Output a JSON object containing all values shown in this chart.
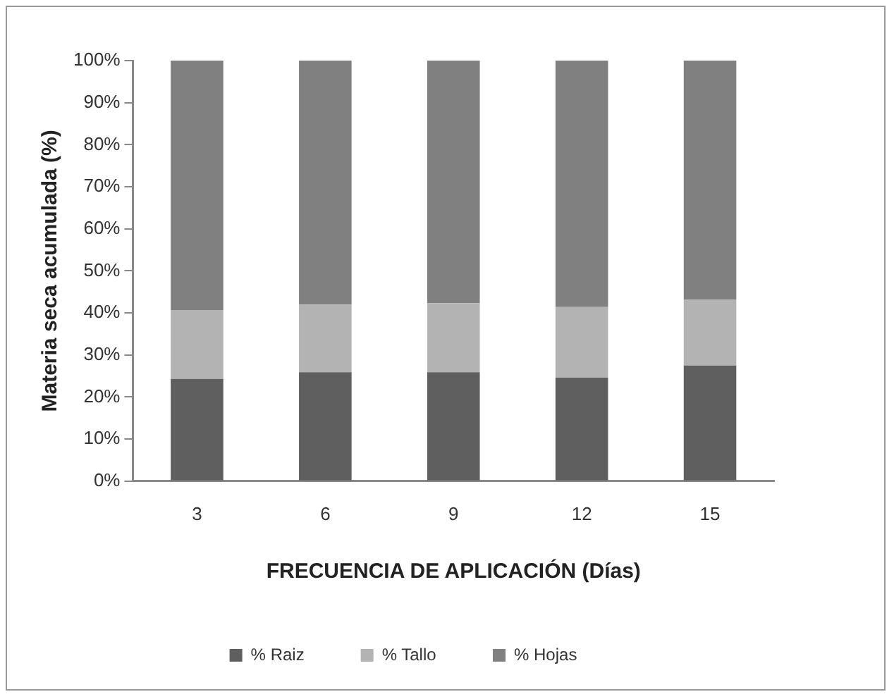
{
  "chart_data": {
    "type": "bar",
    "stacked": true,
    "xlabel": "FRECUENCIA DE APLICACIÓN (Días)",
    "ylabel": "Materia seca acumulada (%)",
    "categories": [
      "3",
      "6",
      "9",
      "12",
      "15"
    ],
    "series": [
      {
        "name": "% Raiz",
        "color": "#5f5f5f",
        "values": [
          24.3,
          25.9,
          25.9,
          24.6,
          27.5
        ]
      },
      {
        "name": "% Tallo",
        "color": "#b3b3b3",
        "values": [
          16.4,
          16.1,
          16.4,
          16.8,
          15.6
        ]
      },
      {
        "name": "% Hojas",
        "color": "#808080",
        "values": [
          59.3,
          58.0,
          57.7,
          58.6,
          56.9
        ]
      }
    ],
    "ylim": [
      0,
      100
    ],
    "yticks": [
      {
        "value": 0,
        "label": "0%"
      },
      {
        "value": 10,
        "label": "10%"
      },
      {
        "value": 20,
        "label": "20%"
      },
      {
        "value": 30,
        "label": "30%"
      },
      {
        "value": 40,
        "label": "40%"
      },
      {
        "value": 50,
        "label": "50%"
      },
      {
        "value": 60,
        "label": "60%"
      },
      {
        "value": 70,
        "label": "70%"
      },
      {
        "value": 80,
        "label": "80%"
      },
      {
        "value": 90,
        "label": "90%"
      },
      {
        "value": 100,
        "label": "100%"
      }
    ],
    "grid": false,
    "legend": "bottom"
  }
}
